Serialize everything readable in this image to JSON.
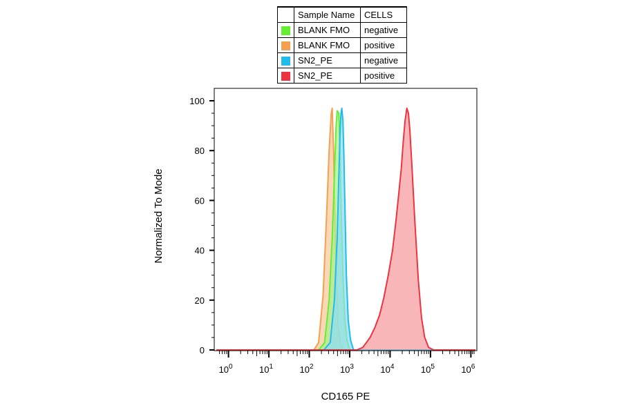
{
  "legend": {
    "col1": "Sample Name",
    "col2": "CELLS",
    "rows": [
      {
        "name": "BLANK FMO",
        "cells": "negative",
        "color": "#66ee33"
      },
      {
        "name": "BLANK FMO",
        "cells": "positive",
        "color": "#f5a050"
      },
      {
        "name": "SN2_PE",
        "cells": "negative",
        "color": "#22bbee"
      },
      {
        "name": "SN2_PE",
        "cells": "positive",
        "color": "#ee3340"
      }
    ]
  },
  "chart_data": {
    "type": "area",
    "title": "",
    "xlabel": "CD165 PE",
    "ylabel": "Normalized To Mode",
    "xscale": "log",
    "xlim": [
      0.5,
      1300000
    ],
    "ylim": [
      0,
      100
    ],
    "yticks": [
      "0",
      "20",
      "40",
      "60",
      "80",
      "100"
    ],
    "xticks": [
      {
        "base": "10",
        "exp": "0",
        "value": 1
      },
      {
        "base": "10",
        "exp": "1",
        "value": 10
      },
      {
        "base": "10",
        "exp": "2",
        "value": 100
      },
      {
        "base": "10",
        "exp": "3",
        "value": 1000
      },
      {
        "base": "10",
        "exp": "4",
        "value": 10000
      },
      {
        "base": "10",
        "exp": "5",
        "value": 100000
      },
      {
        "base": "10",
        "exp": "6",
        "value": 1000000
      }
    ],
    "grid": false,
    "series": [
      {
        "color": "#f5a050",
        "fill": "#f8c89a",
        "points": [
          [
            0.5,
            0
          ],
          [
            130,
            0
          ],
          [
            170,
            3
          ],
          [
            220,
            22
          ],
          [
            270,
            55
          ],
          [
            310,
            80
          ],
          [
            350,
            95
          ],
          [
            370,
            97
          ],
          [
            400,
            80
          ],
          [
            430,
            55
          ],
          [
            470,
            28
          ],
          [
            520,
            9
          ],
          [
            600,
            2
          ],
          [
            700,
            0
          ],
          [
            1300000,
            0
          ]
        ]
      },
      {
        "color": "#66ee33",
        "fill": "#a6f08a",
        "points": [
          [
            0.5,
            0
          ],
          [
            170,
            0
          ],
          [
            240,
            3
          ],
          [
            310,
            20
          ],
          [
            370,
            45
          ],
          [
            420,
            70
          ],
          [
            460,
            90
          ],
          [
            490,
            96
          ],
          [
            540,
            95
          ],
          [
            580,
            80
          ],
          [
            620,
            55
          ],
          [
            680,
            30
          ],
          [
            760,
            12
          ],
          [
            860,
            4
          ],
          [
            1000,
            0
          ],
          [
            1300000,
            0
          ]
        ]
      },
      {
        "color": "#22bbee",
        "fill": "#8cdcf5",
        "points": [
          [
            0.5,
            0
          ],
          [
            230,
            0
          ],
          [
            330,
            3
          ],
          [
            420,
            20
          ],
          [
            490,
            45
          ],
          [
            540,
            70
          ],
          [
            580,
            88
          ],
          [
            610,
            95
          ],
          [
            640,
            97
          ],
          [
            680,
            92
          ],
          [
            720,
            78
          ],
          [
            770,
            55
          ],
          [
            830,
            30
          ],
          [
            920,
            12
          ],
          [
            1050,
            4
          ],
          [
            1250,
            0
          ],
          [
            1300000,
            0
          ]
        ]
      },
      {
        "color": "#ee3340",
        "fill": "#f59a9e",
        "points": [
          [
            0.5,
            0
          ],
          [
            1500,
            0
          ],
          [
            2100,
            1
          ],
          [
            2600,
            3
          ],
          [
            3200,
            5
          ],
          [
            4200,
            9
          ],
          [
            5500,
            14
          ],
          [
            7000,
            21
          ],
          [
            9000,
            30
          ],
          [
            11500,
            40
          ],
          [
            14000,
            52
          ],
          [
            16500,
            63
          ],
          [
            19000,
            73
          ],
          [
            21000,
            83
          ],
          [
            23500,
            92
          ],
          [
            26000,
            97
          ],
          [
            28500,
            95
          ],
          [
            31000,
            88
          ],
          [
            35000,
            73
          ],
          [
            41000,
            52
          ],
          [
            50000,
            28
          ],
          [
            60000,
            13
          ],
          [
            72000,
            5
          ],
          [
            90000,
            1
          ],
          [
            120000,
            0
          ],
          [
            1300000,
            0
          ]
        ]
      }
    ]
  }
}
